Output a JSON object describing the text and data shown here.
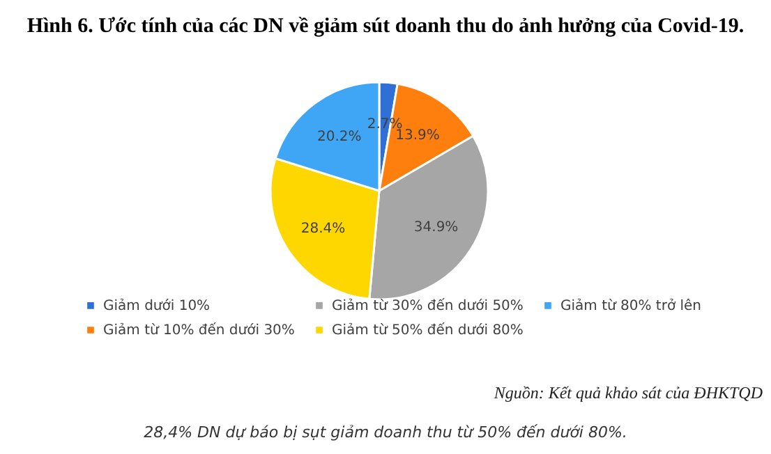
{
  "chart_data": {
    "type": "pie",
    "title": "Hình 6. Ước tính của các DN về giảm sút doanh thu do ảnh hưởng của Covid-19.",
    "categories": [
      "Giảm dưới 10%",
      "Giảm từ 10% đến dưới 30%",
      "Giảm từ 30% đến dưới 50%",
      "Giảm từ 50% đến dưới 80%",
      "Giảm từ 80% trở lên"
    ],
    "values": [
      2.7,
      13.9,
      34.9,
      28.4,
      20.2
    ],
    "value_labels": [
      "2.7%",
      "13.9%",
      "34.9%",
      "28.4%",
      "20.2%"
    ],
    "colors": [
      "#2f6fd6",
      "#ff7f0e",
      "#a6a6a6",
      "#ffd700",
      "#3ea6f5"
    ],
    "legend": "bottom",
    "annotations": [
      "Nguồn: Kết quả khảo sát của ĐHKTQD",
      "28,4% DN dự báo bị sụt giảm doanh thu từ 50% đến dưới 80%."
    ]
  }
}
